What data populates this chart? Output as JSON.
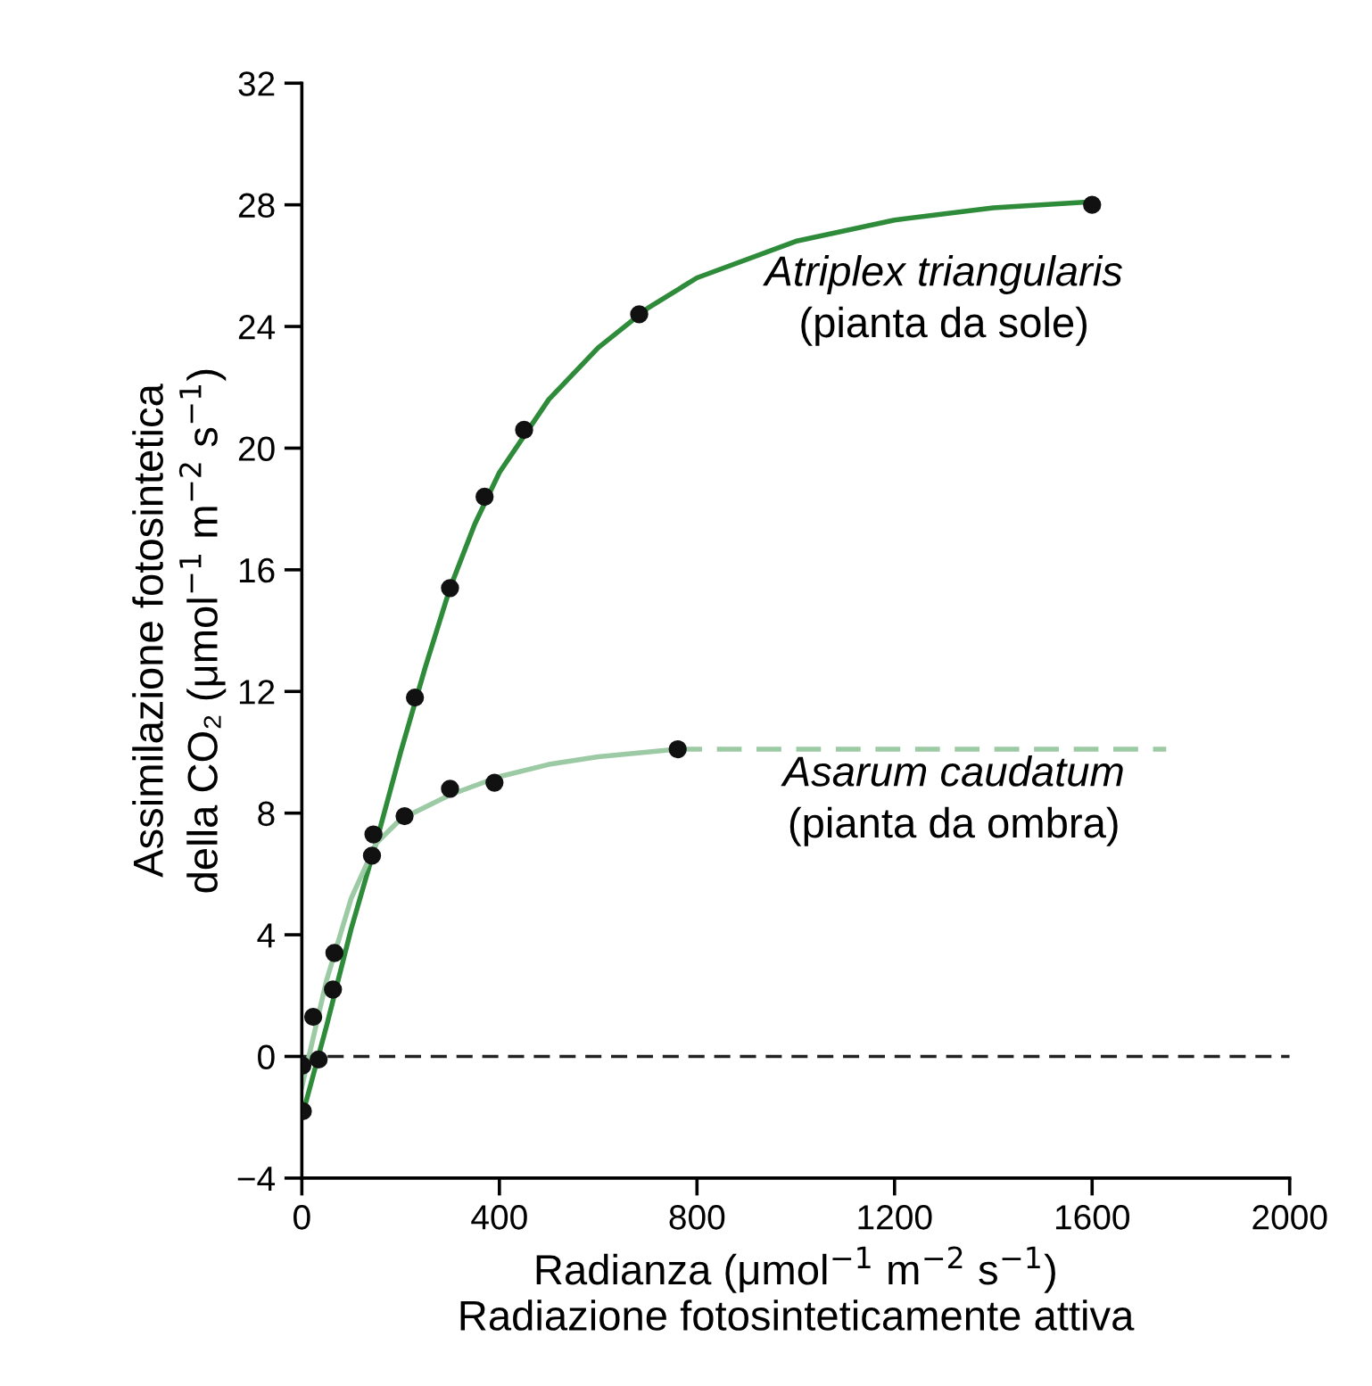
{
  "chart_data": {
    "type": "scatter",
    "xlabel": "Radianza (μmol$^{−1}$ m$^{−2}$ s$^{−1}$)\nRadiazione fotosinteticamente attiva",
    "ylabel": "Assimilazione fotosintetica\ndella CO₂ (μmol$^{−1}$ m$^{−2}$ s$^{−1}$)",
    "xlim": [
      0,
      2000
    ],
    "xticks": [
      0,
      400,
      800,
      1200,
      1600,
      2000
    ],
    "ylim": [
      -4,
      32
    ],
    "yticks": [
      {
        "value": -4,
        "label": "−4"
      },
      0,
      4,
      8,
      12,
      16,
      20,
      24,
      28,
      32
    ],
    "grid": false,
    "legend": false,
    "series": [
      {
        "type": "line",
        "color": "#2e8b3a",
        "line_style": "solid",
        "marker": "none",
        "x": [
          0,
          50,
          100,
          150,
          200,
          250,
          300,
          350,
          400,
          500,
          600,
          700,
          800,
          1000,
          1200,
          1400,
          1600
        ],
        "values": [
          -2,
          1,
          4.2,
          7,
          10,
          12.8,
          15.4,
          17.5,
          19.2,
          21.6,
          23.3,
          24.6,
          25.6,
          26.8,
          27.5,
          27.9,
          28.1
        ]
      },
      {
        "type": "line",
        "color": "#9ccaa4",
        "line_style": "solid",
        "marker": "none",
        "x": [
          0,
          50,
          100,
          150,
          200,
          300,
          400,
          500,
          600,
          760
        ],
        "values": [
          -1,
          2.5,
          5.2,
          7,
          7.8,
          8.6,
          9.2,
          9.6,
          9.85,
          10.1
        ]
      },
      {
        "type": "line",
        "color": "#9ccaa4",
        "line_style": "dashed",
        "marker": "none",
        "x": [
          760,
          1750
        ],
        "values": [
          10.1,
          10.1
        ]
      },
      {
        "color": "#111111",
        "marker": "circle",
        "x": [
          2,
          34,
          63,
          142,
          229,
          300,
          370,
          450,
          683,
          1600
        ],
        "values": [
          -1.8,
          -0.1,
          2.2,
          6.6,
          11.8,
          15.4,
          18.4,
          20.6,
          24.4,
          28.0
        ]
      },
      {
        "color": "#111111",
        "marker": "circle",
        "x": [
          1,
          23,
          66,
          145,
          208,
          300,
          390,
          761
        ],
        "values": [
          -0.3,
          1.3,
          3.4,
          7.3,
          7.9,
          8.8,
          9.0,
          10.1
        ]
      }
    ],
    "ref_lines": [
      {
        "axis": "y",
        "value": 0,
        "color": "#222222",
        "line_style": "dashed"
      }
    ],
    "annotations": [
      "Atriplex triangularis",
      "(pianta da sole)",
      "Asarum caudatum",
      "(pianta da ombra)"
    ]
  }
}
